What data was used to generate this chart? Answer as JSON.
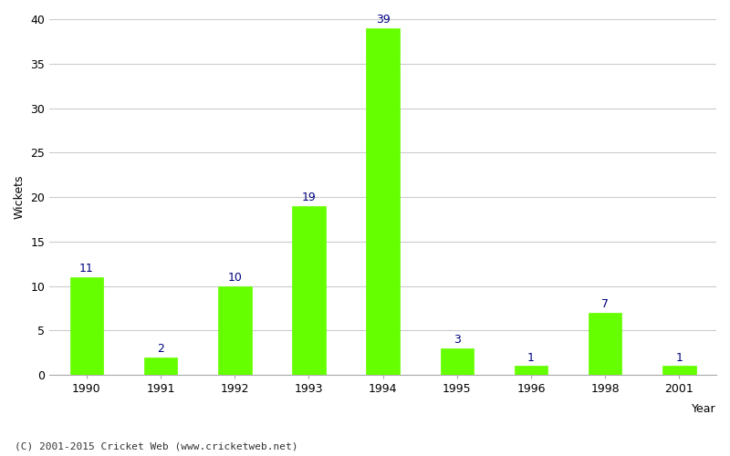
{
  "years": [
    "1990",
    "1991",
    "1992",
    "1993",
    "1994",
    "1995",
    "1996",
    "1998",
    "2001"
  ],
  "values": [
    11,
    2,
    10,
    19,
    39,
    3,
    1,
    7,
    1
  ],
  "bar_color": "#66ff00",
  "bar_edge_color": "#66ff00",
  "label_color": "#000080",
  "xlabel": "Year",
  "ylabel": "Wickets",
  "ylim": [
    0,
    40
  ],
  "yticks": [
    0,
    5,
    10,
    15,
    20,
    25,
    30,
    35,
    40
  ],
  "grid_color": "#cccccc",
  "background_color": "#ffffff",
  "footer_text": "(C) 2001-2015 Cricket Web (www.cricketweb.net)",
  "label_fontsize": 9,
  "axis_fontsize": 9,
  "bar_width": 0.45
}
